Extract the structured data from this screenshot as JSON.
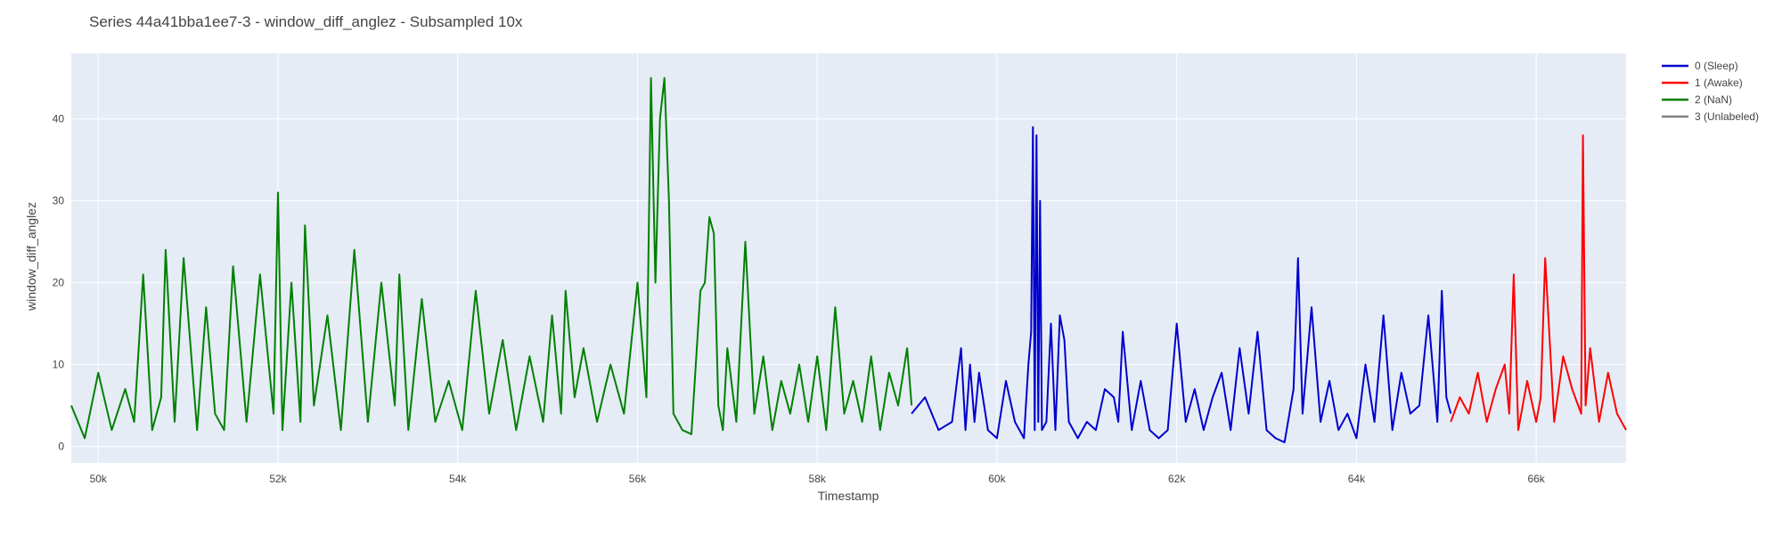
{
  "chart_data": {
    "type": "line",
    "title": "Series 44a41bba1ee7-3 - window_diff_anglez - Subsampled 10x",
    "xlabel": "Timestamp",
    "ylabel": "window_diff_anglez",
    "xlim": [
      49700,
      67000
    ],
    "ylim": [
      -2,
      48
    ],
    "x_ticks": [
      50000,
      52000,
      54000,
      56000,
      58000,
      60000,
      62000,
      64000,
      66000
    ],
    "x_tick_labels": [
      "50k",
      "52k",
      "54k",
      "56k",
      "58k",
      "60k",
      "62k",
      "64k",
      "66k"
    ],
    "y_ticks": [
      0,
      10,
      20,
      30,
      40
    ],
    "y_tick_labels": [
      "0",
      "10",
      "20",
      "30",
      "40"
    ],
    "grid": true,
    "legend_position": "top-right",
    "plot_background": "#e5ecf6",
    "series": [
      {
        "name": "0 (Sleep)",
        "color": "#0000cd",
        "x": [
          59050,
          59200,
          59350,
          59500,
          59600,
          59650,
          59700,
          59750,
          59800,
          59900,
          60000,
          60100,
          60200,
          60300,
          60350,
          60380,
          60400,
          60420,
          60440,
          60460,
          60480,
          60500,
          60550,
          60600,
          60650,
          60700,
          60750,
          60800,
          60900,
          61000,
          61100,
          61200,
          61300,
          61350,
          61400,
          61500,
          61600,
          61700,
          61800,
          61900,
          62000,
          62100,
          62200,
          62300,
          62400,
          62500,
          62600,
          62700,
          62800,
          62900,
          63000,
          63100,
          63200,
          63300,
          63350,
          63400,
          63500,
          63600,
          63700,
          63800,
          63900,
          64000,
          64100,
          64200,
          64300,
          64400,
          64500,
          64600,
          64700,
          64800,
          64900,
          64950,
          65000,
          65050
        ],
        "y": [
          4,
          6,
          2,
          3,
          12,
          2,
          10,
          3,
          9,
          2,
          1,
          8,
          3,
          1,
          10,
          14,
          39,
          2,
          38,
          3,
          30,
          2,
          3,
          15,
          2,
          16,
          13,
          3,
          1,
          3,
          2,
          7,
          6,
          3,
          14,
          2,
          8,
          2,
          1,
          2,
          15,
          3,
          7,
          2,
          6,
          9,
          2,
          12,
          4,
          14,
          2,
          1,
          0.5,
          7,
          23,
          4,
          17,
          3,
          8,
          2,
          4,
          1,
          10,
          3,
          16,
          2,
          9,
          4,
          5,
          16,
          3,
          19,
          6,
          4
        ]
      },
      {
        "name": "1 (Awake)",
        "color": "#ff0000",
        "x": [
          65050,
          65150,
          65250,
          65350,
          65450,
          65550,
          65650,
          65700,
          65750,
          65800,
          65900,
          66000,
          66050,
          66100,
          66200,
          66300,
          66400,
          66500,
          66520,
          66550,
          66600,
          66700,
          66800,
          66900,
          67000
        ],
        "y": [
          3,
          6,
          4,
          9,
          3,
          7,
          10,
          4,
          21,
          2,
          8,
          3,
          6,
          23,
          3,
          11,
          7,
          4,
          38,
          5,
          12,
          3,
          9,
          4,
          2
        ]
      },
      {
        "name": "2 (NaN)",
        "color": "#008000",
        "x": [
          49700,
          49850,
          50000,
          50150,
          50300,
          50400,
          50500,
          50600,
          50700,
          50750,
          50850,
          50950,
          51100,
          51200,
          51300,
          51400,
          51500,
          51650,
          51800,
          51950,
          52000,
          52050,
          52150,
          52250,
          52300,
          52400,
          52550,
          52700,
          52850,
          53000,
          53150,
          53300,
          53350,
          53450,
          53600,
          53750,
          53900,
          54050,
          54200,
          54350,
          54500,
          54650,
          54800,
          54950,
          55050,
          55150,
          55200,
          55300,
          55400,
          55550,
          55700,
          55850,
          56000,
          56100,
          56150,
          56200,
          56250,
          56300,
          56350,
          56400,
          56450,
          56500,
          56600,
          56700,
          56750,
          56800,
          56850,
          56900,
          56950,
          57000,
          57100,
          57200,
          57300,
          57400,
          57500,
          57600,
          57700,
          57800,
          57900,
          58000,
          58100,
          58200,
          58300,
          58400,
          58500,
          58600,
          58700,
          58800,
          58900,
          59000,
          59050
        ],
        "y": [
          5,
          1,
          9,
          2,
          7,
          3,
          21,
          2,
          6,
          24,
          3,
          23,
          2,
          17,
          4,
          2,
          22,
          3,
          21,
          4,
          31,
          2,
          20,
          3,
          27,
          5,
          16,
          2,
          24,
          3,
          20,
          5,
          21,
          2,
          18,
          3,
          8,
          2,
          19,
          4,
          13,
          2,
          11,
          3,
          16,
          4,
          19,
          6,
          12,
          3,
          10,
          4,
          20,
          6,
          45,
          20,
          40,
          45,
          30,
          4,
          3,
          2,
          1.5,
          19,
          20,
          28,
          26,
          5,
          2,
          12,
          3,
          25,
          4,
          11,
          2,
          8,
          4,
          10,
          3,
          11,
          2,
          17,
          4,
          8,
          3,
          11,
          2,
          9,
          5,
          12,
          5
        ]
      },
      {
        "name": "3 (Unlabeled)",
        "color": "#808080",
        "x": [],
        "y": []
      }
    ]
  }
}
